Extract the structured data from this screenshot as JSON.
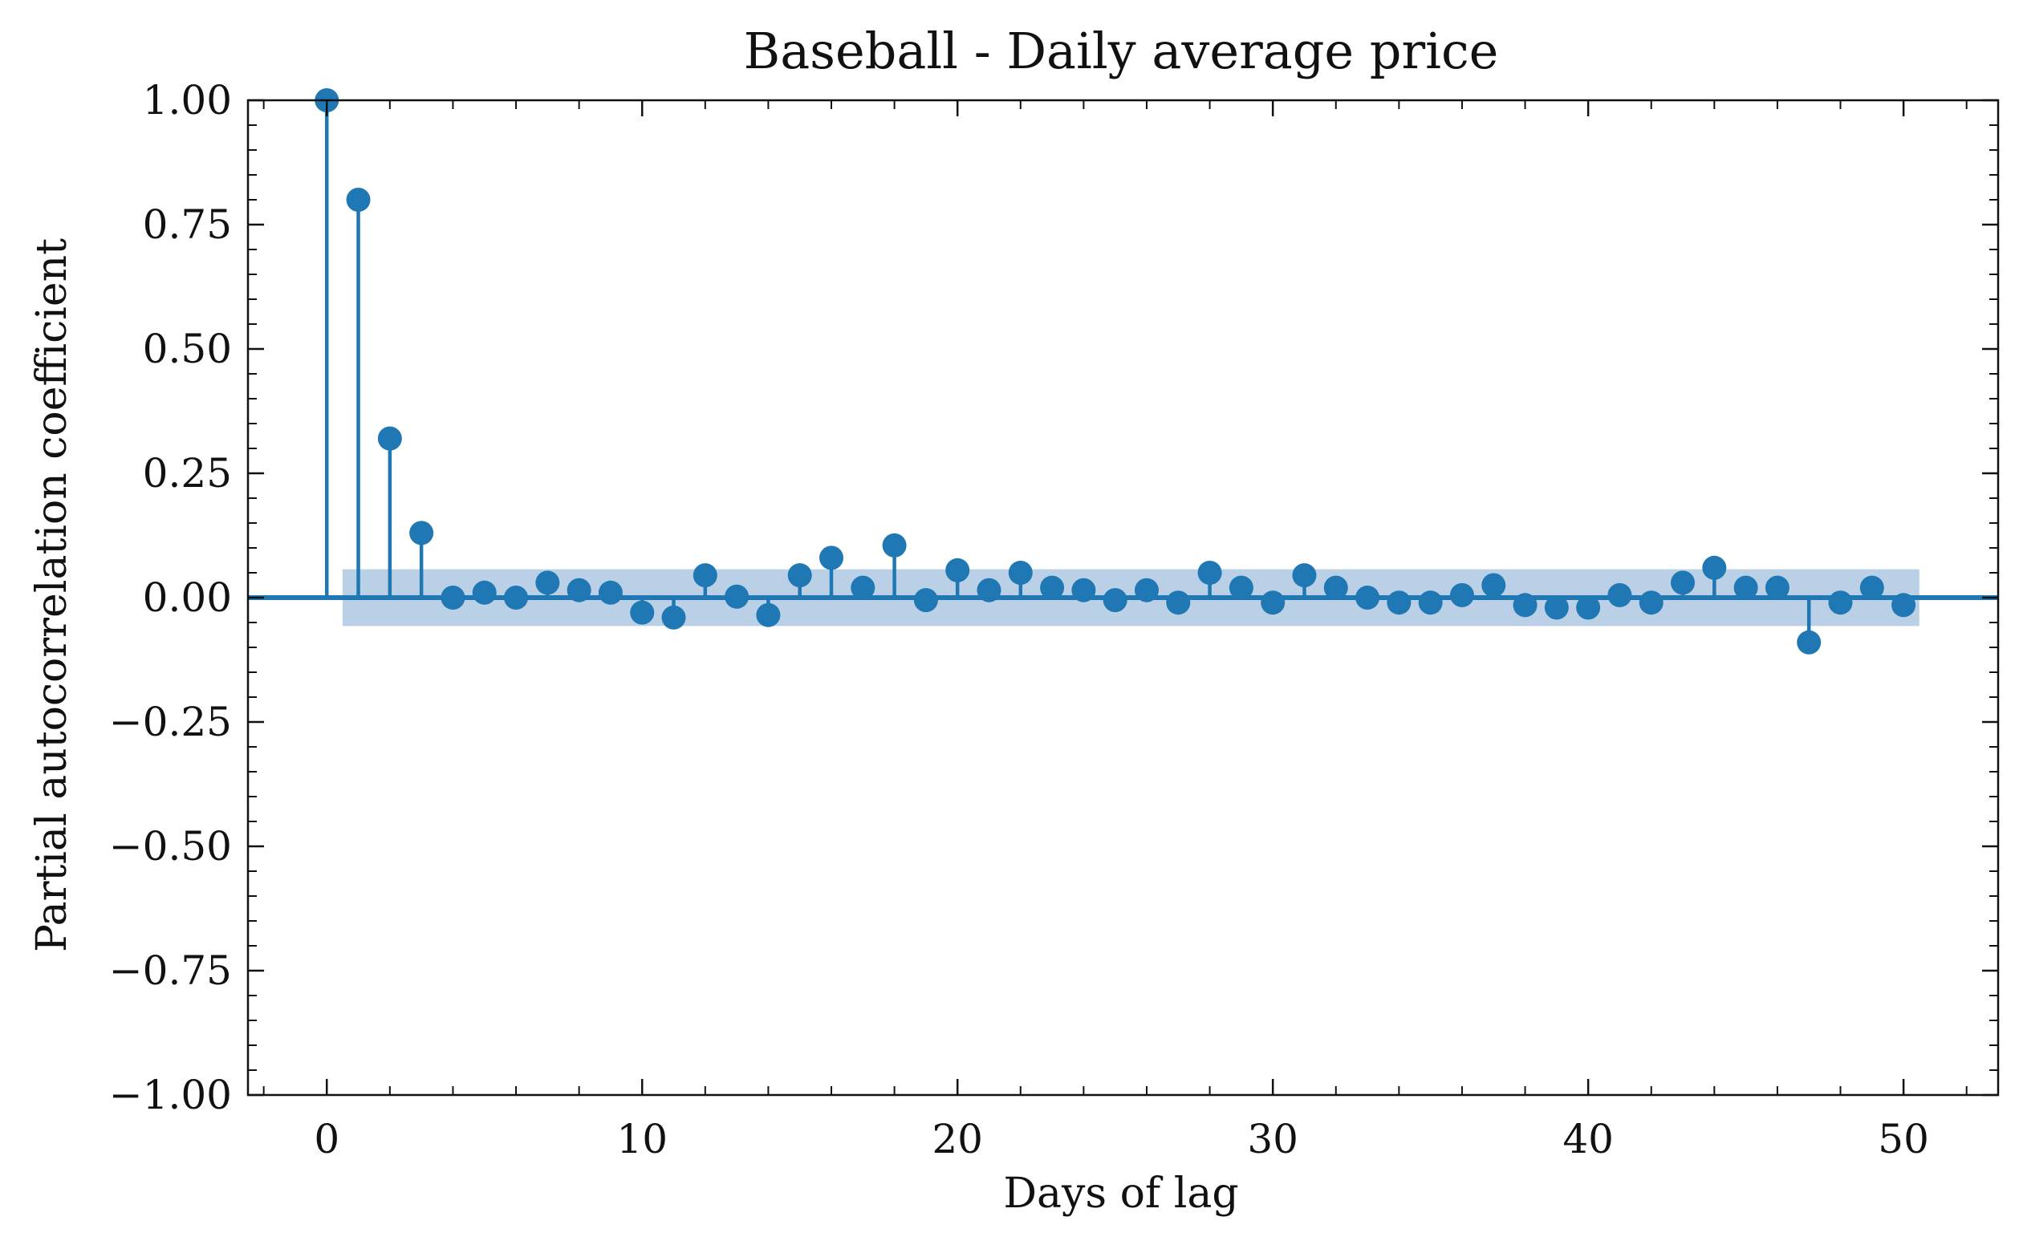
{
  "chart_data": {
    "type": "stem",
    "title": "Baseball - Daily average price",
    "xlabel": "Days of lag",
    "ylabel": "Partial autocorrelation coefficient",
    "xlim": [
      -2.5,
      53
    ],
    "ylim": [
      -1.0,
      1.0
    ],
    "x_ticks": [
      0,
      10,
      20,
      30,
      40,
      50
    ],
    "x_tick_labels": [
      "0",
      "10",
      "20",
      "30",
      "40",
      "50"
    ],
    "y_ticks": [
      1.0,
      0.75,
      0.5,
      0.25,
      0.0,
      -0.25,
      -0.5,
      -0.75,
      -1.0
    ],
    "y_tick_labels": [
      "1.00",
      "0.75",
      "0.50",
      "0.25",
      "0.00",
      "−0.25",
      "−0.50",
      "−0.75",
      "−1.00"
    ],
    "confidence_band": {
      "x_range": [
        0.5,
        50.5
      ],
      "upper": 0.057,
      "lower": -0.057
    },
    "grid": false,
    "colors": {
      "stem": "#1f77b4",
      "band": "#b9d0e6"
    },
    "lags": [
      0,
      1,
      2,
      3,
      4,
      5,
      6,
      7,
      8,
      9,
      10,
      11,
      12,
      13,
      14,
      15,
      16,
      17,
      18,
      19,
      20,
      21,
      22,
      23,
      24,
      25,
      26,
      27,
      28,
      29,
      30,
      31,
      32,
      33,
      34,
      35,
      36,
      37,
      38,
      39,
      40,
      41,
      42,
      43,
      44,
      45,
      46,
      47,
      48,
      49,
      50
    ],
    "values": [
      1.0,
      0.8,
      0.32,
      0.13,
      0.0,
      0.01,
      0.0,
      0.03,
      0.015,
      0.01,
      -0.03,
      -0.04,
      0.045,
      0.002,
      -0.035,
      0.045,
      0.08,
      0.02,
      0.105,
      -0.005,
      0.055,
      0.015,
      0.05,
      0.02,
      0.015,
      -0.005,
      0.015,
      -0.01,
      0.05,
      0.02,
      -0.01,
      0.045,
      0.02,
      0.0,
      -0.01,
      -0.01,
      0.005,
      0.025,
      -0.015,
      -0.02,
      -0.02,
      0.005,
      -0.01,
      0.03,
      0.06,
      0.02,
      0.02,
      -0.09,
      -0.01,
      0.02,
      -0.015
    ]
  }
}
